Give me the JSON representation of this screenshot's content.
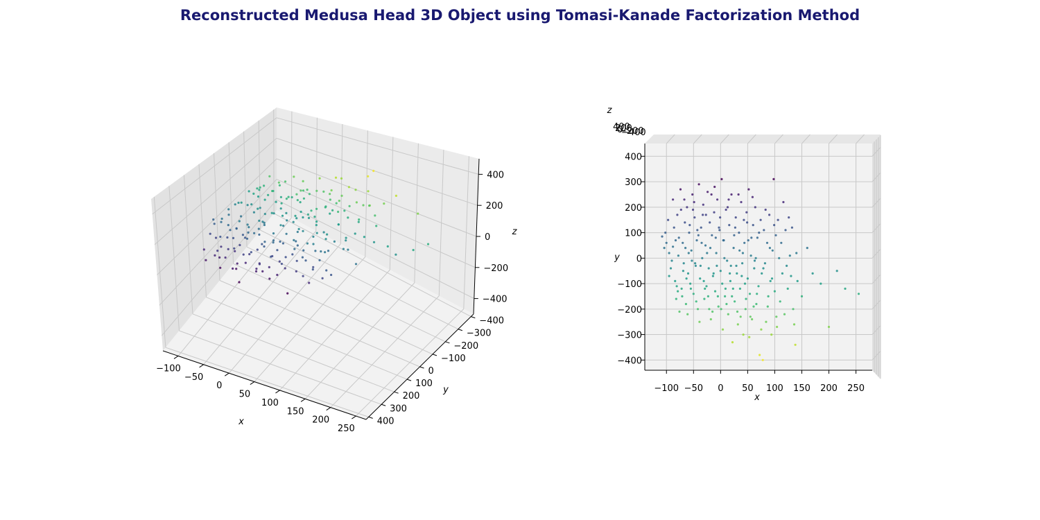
{
  "chart_data": {
    "title": "Reconstructed Medusa Head 3D Object using Tomasi-Kanade Factorization Method",
    "title_color": "#191970",
    "colormap": "viridis",
    "type": "scatter",
    "points_note": "approx. 250 reconstructed 3D points (x,y,z in data units); color encodes -y (yellow = most negative y)",
    "axes": [
      {
        "name": "perspective-view",
        "view": "elev 30, azim -60",
        "xlabel": "x",
        "ylabel": "y",
        "zlabel": "z",
        "xlim": [
          -130,
          270
        ],
        "ylim": [
          -420,
          420
        ],
        "zlim": [
          -500,
          500
        ],
        "xticks": [
          "−100",
          "−50",
          "0",
          "50",
          "100",
          "150",
          "200",
          "250"
        ],
        "yticks": [
          "−400",
          "−300",
          "−200",
          "−100",
          "0",
          "100",
          "200",
          "300",
          "400"
        ],
        "zticks": [
          "−400",
          "−200",
          "0",
          "200",
          "400"
        ]
      },
      {
        "name": "top-view",
        "view": "elev 90, azim -90",
        "xlabel": "x",
        "ylabel": "y",
        "zlabel": "z",
        "xlim": [
          -140,
          280
        ],
        "ylim": [
          -440,
          450
        ],
        "zlim": [
          -400,
          400
        ],
        "xticks": [
          "−100",
          "−50",
          "0",
          "50",
          "100",
          "150",
          "200",
          "250"
        ],
        "yticks": [
          "−400",
          "−300",
          "−200",
          "−100",
          "0",
          "100",
          "200",
          "300",
          "400"
        ],
        "zticks": [
          "400",
          "200",
          "0",
          "−200",
          "−400"
        ]
      }
    ],
    "points": [
      [
        -108,
        85,
        20
      ],
      [
        -100,
        60,
        -15
      ],
      [
        -95,
        20,
        30
      ],
      [
        -92,
        -40,
        10
      ],
      [
        -88,
        230,
        5
      ],
      [
        -86,
        120,
        -30
      ],
      [
        -84,
        -90,
        40
      ],
      [
        -82,
        -160,
        -10
      ],
      [
        -80,
        170,
        25
      ],
      [
        -78,
        10,
        -40
      ],
      [
        -76,
        -210,
        15
      ],
      [
        -74,
        270,
        -5
      ],
      [
        -72,
        -120,
        30
      ],
      [
        -70,
        60,
        -25
      ],
      [
        -68,
        -20,
        45
      ],
      [
        -66,
        140,
        10
      ],
      [
        -64,
        -180,
        -35
      ],
      [
        -62,
        200,
        20
      ],
      [
        -60,
        -60,
        -15
      ],
      [
        -58,
        100,
        35
      ],
      [
        -56,
        -100,
        5
      ],
      [
        -54,
        30,
        -30
      ],
      [
        -52,
        250,
        15
      ],
      [
        -50,
        -140,
        25
      ],
      [
        -48,
        160,
        -20
      ],
      [
        -46,
        -30,
        40
      ],
      [
        -44,
        70,
        -10
      ],
      [
        -42,
        -200,
        30
      ],
      [
        -40,
        290,
        5
      ],
      [
        -38,
        -80,
        -40
      ],
      [
        -36,
        120,
        20
      ],
      [
        -34,
        0,
        -5
      ],
      [
        -32,
        210,
        35
      ],
      [
        -30,
        -160,
        -25
      ],
      [
        -28,
        50,
        10
      ],
      [
        -26,
        -110,
        45
      ],
      [
        -24,
        260,
        -15
      ],
      [
        -22,
        -40,
        20
      ],
      [
        -20,
        140,
        -35
      ],
      [
        -18,
        -240,
        15
      ],
      [
        -16,
        90,
        30
      ],
      [
        -14,
        -70,
        -20
      ],
      [
        -12,
        180,
        5
      ],
      [
        -10,
        -130,
        40
      ],
      [
        -8,
        20,
        -30
      ],
      [
        -6,
        230,
        10
      ],
      [
        -4,
        -190,
        25
      ],
      [
        -2,
        110,
        -10
      ],
      [
        0,
        -50,
        35
      ],
      [
        2,
        310,
        -20
      ],
      [
        4,
        -280,
        15
      ],
      [
        6,
        70,
        -5
      ],
      [
        8,
        -150,
        30
      ],
      [
        10,
        190,
        -25
      ],
      [
        12,
        -10,
        45
      ],
      [
        14,
        -220,
        10
      ],
      [
        16,
        130,
        -35
      ],
      [
        18,
        -90,
        20
      ],
      [
        20,
        250,
        5
      ],
      [
        22,
        -330,
        -15
      ],
      [
        24,
        40,
        25
      ],
      [
        26,
        -170,
        -40
      ],
      [
        28,
        160,
        15
      ],
      [
        30,
        -60,
        30
      ],
      [
        32,
        -260,
        -10
      ],
      [
        34,
        100,
        40
      ],
      [
        36,
        -120,
        -25
      ],
      [
        38,
        220,
        20
      ],
      [
        40,
        -20,
        -5
      ],
      [
        42,
        -300,
        35
      ],
      [
        44,
        60,
        -30
      ],
      [
        46,
        -200,
        10
      ],
      [
        48,
        180,
        25
      ],
      [
        50,
        -80,
        -20
      ],
      [
        52,
        270,
        15
      ],
      [
        54,
        -140,
        40
      ],
      [
        56,
        10,
        -35
      ],
      [
        58,
        -240,
        5
      ],
      [
        60,
        130,
        30
      ],
      [
        62,
        -40,
        -15
      ],
      [
        64,
        200,
        20
      ],
      [
        66,
        -180,
        -25
      ],
      [
        68,
        80,
        10
      ],
      [
        70,
        -110,
        45
      ],
      [
        72,
        -380,
        -5
      ],
      [
        74,
        150,
        25
      ],
      [
        76,
        -60,
        -30
      ],
      [
        78,
        -400,
        15
      ],
      [
        80,
        110,
        -10
      ],
      [
        82,
        -20,
        35
      ],
      [
        84,
        -250,
        -20
      ],
      [
        86,
        60,
        5
      ],
      [
        88,
        -150,
        40
      ],
      [
        90,
        170,
        -35
      ],
      [
        92,
        -90,
        20
      ],
      [
        94,
        -300,
        10
      ],
      [
        96,
        30,
        -25
      ],
      [
        98,
        310,
        15
      ],
      [
        100,
        -130,
        30
      ],
      [
        102,
        90,
        -5
      ],
      [
        104,
        -270,
        -40
      ],
      [
        106,
        150,
        20
      ],
      [
        108,
        0,
        25
      ],
      [
        110,
        -170,
        -15
      ],
      [
        112,
        60,
        35
      ],
      [
        114,
        -60,
        -10
      ],
      [
        116,
        220,
        5
      ],
      [
        118,
        -220,
        30
      ],
      [
        120,
        110,
        -30
      ],
      [
        122,
        -30,
        15
      ],
      [
        124,
        -120,
        40
      ],
      [
        126,
        160,
        -20
      ],
      [
        128,
        10,
        10
      ],
      [
        130,
        -70,
        25
      ],
      [
        132,
        120,
        -35
      ],
      [
        134,
        -200,
        5
      ],
      [
        136,
        -260,
        20
      ],
      [
        138,
        -340,
        -15
      ],
      [
        140,
        20,
        30
      ],
      [
        142,
        -90,
        -5
      ],
      [
        150,
        -150,
        10
      ],
      [
        160,
        40,
        -20
      ],
      [
        170,
        -60,
        25
      ],
      [
        185,
        -100,
        -30
      ],
      [
        200,
        -270,
        15
      ],
      [
        215,
        -50,
        5
      ],
      [
        230,
        -120,
        -25
      ],
      [
        255,
        -140,
        20
      ],
      [
        -104,
        40,
        -20
      ],
      [
        -97,
        150,
        10
      ],
      [
        -90,
        -10,
        35
      ],
      [
        -83,
        70,
        -5
      ],
      [
        -79,
        -130,
        20
      ],
      [
        -73,
        190,
        -30
      ],
      [
        -69,
        -50,
        15
      ],
      [
        -65,
        40,
        40
      ],
      [
        -61,
        -220,
        -20
      ],
      [
        -57,
        130,
        5
      ],
      [
        -53,
        -10,
        25
      ],
      [
        -49,
        220,
        -15
      ],
      [
        -45,
        -170,
        35
      ],
      [
        -41,
        90,
        -25
      ],
      [
        -37,
        -30,
        10
      ],
      [
        -33,
        170,
        30
      ],
      [
        -29,
        -120,
        -10
      ],
      [
        -25,
        20,
        20
      ],
      [
        -21,
        -200,
        -30
      ],
      [
        -17,
        250,
        15
      ],
      [
        -13,
        -60,
        40
      ],
      [
        -9,
        80,
        -20
      ],
      [
        -5,
        -150,
        5
      ],
      [
        -1,
        160,
        25
      ],
      [
        3,
        -100,
        -35
      ],
      [
        7,
        0,
        15
      ],
      [
        11,
        -180,
        30
      ],
      [
        15,
        230,
        -5
      ],
      [
        19,
        -30,
        20
      ],
      [
        23,
        -120,
        -25
      ],
      [
        27,
        120,
        10
      ],
      [
        31,
        -210,
        35
      ],
      [
        35,
        30,
        -15
      ],
      [
        39,
        -70,
        25
      ],
      [
        43,
        150,
        -30
      ],
      [
        47,
        -160,
        5
      ],
      [
        51,
        70,
        40
      ],
      [
        55,
        -230,
        -20
      ],
      [
        59,
        240,
        15
      ],
      [
        63,
        -10,
        -5
      ],
      [
        67,
        -140,
        30
      ],
      [
        71,
        100,
        -10
      ],
      [
        75,
        -280,
        20
      ],
      [
        79,
        -40,
        -35
      ],
      [
        83,
        190,
        10
      ],
      [
        87,
        -190,
        25
      ],
      [
        91,
        40,
        -15
      ],
      [
        95,
        -80,
        35
      ],
      [
        99,
        130,
        -25
      ],
      [
        103,
        -230,
        5
      ],
      [
        -102,
        100,
        15
      ],
      [
        -95,
        -70,
        -25
      ],
      [
        -88,
        45,
        30
      ],
      [
        -81,
        -110,
        5
      ],
      [
        -77,
        80,
        -20
      ],
      [
        -71,
        -150,
        25
      ],
      [
        -67,
        230,
        -10
      ],
      [
        -63,
        -80,
        40
      ],
      [
        -59,
        20,
        -30
      ],
      [
        -55,
        -120,
        15
      ],
      [
        -51,
        190,
        5
      ],
      [
        -47,
        -20,
        -35
      ],
      [
        -43,
        110,
        20
      ],
      [
        -39,
        -250,
        10
      ],
      [
        -35,
        60,
        -15
      ],
      [
        -31,
        -90,
        30
      ],
      [
        -27,
        170,
        -25
      ],
      [
        -23,
        -150,
        5
      ],
      [
        -19,
        40,
        35
      ],
      [
        -15,
        -210,
        -10
      ],
      [
        -11,
        280,
        20
      ],
      [
        -7,
        -30,
        -30
      ],
      [
        -3,
        120,
        15
      ],
      [
        1,
        -200,
        25
      ],
      [
        5,
        70,
        -20
      ],
      [
        9,
        -120,
        40
      ],
      [
        13,
        200,
        -5
      ],
      [
        17,
        -60,
        10
      ],
      [
        21,
        -150,
        -35
      ],
      [
        25,
        90,
        30
      ],
      [
        29,
        -30,
        -15
      ],
      [
        33,
        250,
        20
      ],
      [
        37,
        -230,
        5
      ],
      [
        41,
        20,
        35
      ],
      [
        45,
        -100,
        -25
      ],
      [
        49,
        140,
        10
      ],
      [
        53,
        -310,
        -20
      ],
      [
        57,
        80,
        30
      ],
      [
        61,
        -190,
        15
      ],
      [
        65,
        0,
        -40
      ]
    ]
  }
}
